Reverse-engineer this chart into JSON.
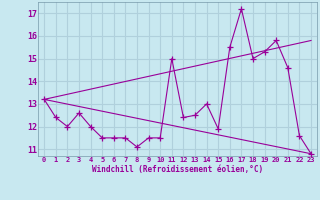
{
  "line1_x": [
    0,
    1,
    2,
    3,
    4,
    5,
    6,
    7,
    8,
    9,
    10,
    11,
    12,
    13,
    14,
    15,
    16,
    17,
    18,
    19,
    20,
    21,
    22,
    23
  ],
  "line1_y": [
    13.2,
    12.4,
    12.0,
    12.6,
    12.0,
    11.5,
    11.5,
    11.5,
    11.1,
    11.5,
    11.5,
    15.0,
    12.4,
    12.5,
    13.0,
    11.9,
    15.5,
    17.2,
    15.0,
    15.3,
    15.8,
    14.6,
    11.6,
    10.8
  ],
  "line2_x": [
    0,
    23
  ],
  "line2_y": [
    13.2,
    10.8
  ],
  "line3_x": [
    0,
    23
  ],
  "line3_y": [
    13.2,
    15.8
  ],
  "color": "#990099",
  "bg_color": "#c8e8f0",
  "grid_color": "#b0d0dc",
  "xlabel": "Windchill (Refroidissement éolien,°C)",
  "xlim": [
    -0.5,
    23.5
  ],
  "ylim": [
    10.7,
    17.5
  ],
  "yticks": [
    11,
    12,
    13,
    14,
    15,
    16,
    17
  ],
  "xticks": [
    0,
    1,
    2,
    3,
    4,
    5,
    6,
    7,
    8,
    9,
    10,
    11,
    12,
    13,
    14,
    15,
    16,
    17,
    18,
    19,
    20,
    21,
    22,
    23
  ]
}
